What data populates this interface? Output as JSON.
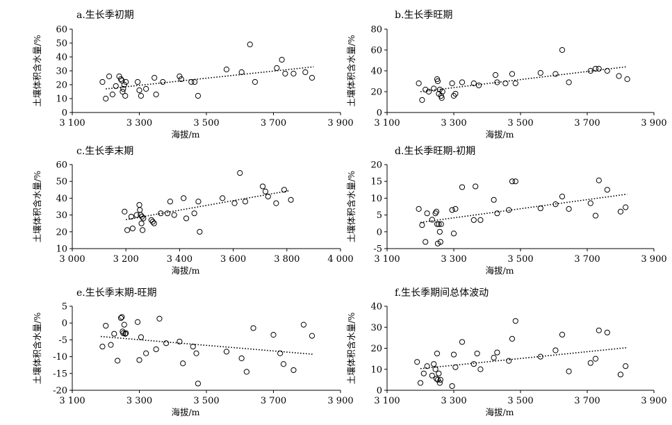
{
  "chart_data": [
    {
      "type": "scatter",
      "title": "a.生长季初期",
      "xlabel": "海拔/m",
      "ylabel": "土壤体积含水量/%",
      "xlim": [
        3100,
        3900
      ],
      "ylim": [
        0,
        60
      ],
      "xticks": [
        3100,
        3300,
        3500,
        3700,
        3900
      ],
      "xtick_labels": [
        "3 100",
        "3 300",
        "3 500",
        "3 700",
        "3 900"
      ],
      "yticks": [
        0,
        10,
        20,
        30,
        40,
        50,
        60
      ],
      "ytick_labels": [
        "0",
        "10",
        "20",
        "30",
        "40",
        "50",
        "60"
      ],
      "trendline": [
        [
          3200,
          17.0
        ],
        [
          3820,
          32.9
        ]
      ],
      "points": [
        [
          3190,
          22
        ],
        [
          3200,
          10
        ],
        [
          3210,
          26
        ],
        [
          3220,
          13
        ],
        [
          3230,
          19
        ],
        [
          3240,
          26
        ],
        [
          3245,
          24
        ],
        [
          3248,
          23
        ],
        [
          3250,
          15
        ],
        [
          3252,
          17
        ],
        [
          3255,
          20
        ],
        [
          3258,
          12
        ],
        [
          3260,
          22
        ],
        [
          3295,
          22
        ],
        [
          3300,
          16
        ],
        [
          3305,
          12
        ],
        [
          3320,
          17
        ],
        [
          3345,
          25
        ],
        [
          3350,
          13
        ],
        [
          3370,
          22
        ],
        [
          3420,
          26
        ],
        [
          3425,
          24
        ],
        [
          3455,
          22
        ],
        [
          3465,
          22
        ],
        [
          3475,
          12
        ],
        [
          3560,
          31
        ],
        [
          3605,
          29
        ],
        [
          3630,
          49
        ],
        [
          3645,
          22
        ],
        [
          3710,
          32
        ],
        [
          3725,
          38
        ],
        [
          3735,
          28
        ],
        [
          3760,
          28
        ],
        [
          3795,
          29
        ],
        [
          3815,
          25
        ]
      ]
    },
    {
      "type": "scatter",
      "title": "b.生长季旺期",
      "xlabel": "海拔/m",
      "ylabel": "土壤体积含水量/%",
      "xlim": [
        3100,
        3900
      ],
      "ylim": [
        0,
        80
      ],
      "xticks": [
        3100,
        3300,
        3500,
        3700,
        3900
      ],
      "xtick_labels": [
        "3 100",
        "3 300",
        "3 500",
        "3 700",
        "3 900"
      ],
      "yticks": [
        0,
        20,
        40,
        60,
        80
      ],
      "ytick_labels": [
        "0",
        "20",
        "40",
        "60",
        "80"
      ],
      "trendline": [
        [
          3200,
          20.0
        ],
        [
          3820,
          44.0
        ]
      ],
      "points": [
        [
          3195,
          28
        ],
        [
          3205,
          12
        ],
        [
          3215,
          22
        ],
        [
          3225,
          20
        ],
        [
          3240,
          23
        ],
        [
          3250,
          32
        ],
        [
          3252,
          30
        ],
        [
          3255,
          18
        ],
        [
          3258,
          22
        ],
        [
          3262,
          16
        ],
        [
          3264,
          14
        ],
        [
          3266,
          20
        ],
        [
          3295,
          28
        ],
        [
          3300,
          16
        ],
        [
          3305,
          18
        ],
        [
          3325,
          29
        ],
        [
          3360,
          28
        ],
        [
          3375,
          26
        ],
        [
          3425,
          36
        ],
        [
          3430,
          29
        ],
        [
          3455,
          28
        ],
        [
          3475,
          37
        ],
        [
          3485,
          28
        ],
        [
          3560,
          38
        ],
        [
          3605,
          37
        ],
        [
          3625,
          60
        ],
        [
          3645,
          29
        ],
        [
          3710,
          40
        ],
        [
          3725,
          42
        ],
        [
          3735,
          42
        ],
        [
          3760,
          40
        ],
        [
          3795,
          35
        ],
        [
          3820,
          32
        ]
      ]
    },
    {
      "type": "scatter",
      "title": "c.生长季末期",
      "xlabel": "海拔/m",
      "ylabel": "土壤体积含水量/%",
      "xlim": [
        3000,
        4000
      ],
      "ylim": [
        10,
        60
      ],
      "xticks": [
        3000,
        3200,
        3400,
        3600,
        3800,
        4000
      ],
      "xtick_labels": [
        "3 000",
        "3 200",
        "3 400",
        "3 600",
        "3 800",
        "4 000"
      ],
      "yticks": [
        10,
        20,
        30,
        40,
        50,
        60
      ],
      "ytick_labels": [
        "10",
        "20",
        "30",
        "40",
        "50",
        "60"
      ],
      "trendline": [
        [
          3200,
          27.2
        ],
        [
          3810,
          44.5
        ]
      ],
      "points": [
        [
          3195,
          32
        ],
        [
          3205,
          21
        ],
        [
          3220,
          29
        ],
        [
          3225,
          22
        ],
        [
          3240,
          30
        ],
        [
          3250,
          36
        ],
        [
          3252,
          33
        ],
        [
          3255,
          30
        ],
        [
          3258,
          25
        ],
        [
          3260,
          29
        ],
        [
          3262,
          21
        ],
        [
          3265,
          28
        ],
        [
          3295,
          27
        ],
        [
          3300,
          26
        ],
        [
          3305,
          25
        ],
        [
          3330,
          31
        ],
        [
          3355,
          31
        ],
        [
          3365,
          38
        ],
        [
          3380,
          30
        ],
        [
          3415,
          40
        ],
        [
          3425,
          28
        ],
        [
          3455,
          31
        ],
        [
          3470,
          38
        ],
        [
          3475,
          20
        ],
        [
          3560,
          40
        ],
        [
          3605,
          37
        ],
        [
          3625,
          55
        ],
        [
          3645,
          38
        ],
        [
          3710,
          47
        ],
        [
          3720,
          44
        ],
        [
          3730,
          41
        ],
        [
          3760,
          37
        ],
        [
          3790,
          45
        ],
        [
          3815,
          39
        ]
      ]
    },
    {
      "type": "scatter",
      "title": "d.生长季旺期-初期",
      "xlabel": "海拔/m",
      "ylabel": "土壤体积含水量/%",
      "xlim": [
        3100,
        3900
      ],
      "ylim": [
        -5,
        20
      ],
      "xticks": [
        3100,
        3300,
        3500,
        3700,
        3900
      ],
      "xtick_labels": [
        "3 100",
        "3 300",
        "3 500",
        "3 700",
        "3 900"
      ],
      "yticks": [
        -5,
        0,
        5,
        10,
        15,
        20
      ],
      "ytick_labels": [
        "-5",
        "0",
        "5",
        "10",
        "15",
        "20"
      ],
      "trendline": [
        [
          3200,
          2.8
        ],
        [
          3820,
          11.2
        ]
      ],
      "points": [
        [
          3195,
          6.8
        ],
        [
          3205,
          2.0
        ],
        [
          3215,
          -3.0
        ],
        [
          3220,
          5.5
        ],
        [
          3235,
          3.6
        ],
        [
          3245,
          5.5
        ],
        [
          3248,
          6.0
        ],
        [
          3250,
          2.3
        ],
        [
          3252,
          -3.5
        ],
        [
          3255,
          2.3
        ],
        [
          3258,
          0.0
        ],
        [
          3260,
          -3.0
        ],
        [
          3262,
          2.3
        ],
        [
          3295,
          6.5
        ],
        [
          3300,
          -0.5
        ],
        [
          3305,
          6.8
        ],
        [
          3325,
          13.3
        ],
        [
          3360,
          3.5
        ],
        [
          3365,
          13.5
        ],
        [
          3380,
          3.5
        ],
        [
          3420,
          9.5
        ],
        [
          3430,
          5.5
        ],
        [
          3465,
          6.5
        ],
        [
          3475,
          15.0
        ],
        [
          3485,
          15.0
        ],
        [
          3560,
          7.0
        ],
        [
          3605,
          8.2
        ],
        [
          3625,
          10.5
        ],
        [
          3645,
          6.8
        ],
        [
          3710,
          8.5
        ],
        [
          3725,
          4.8
        ],
        [
          3735,
          15.3
        ],
        [
          3760,
          12.5
        ],
        [
          3800,
          6.0
        ],
        [
          3815,
          7.3
        ]
      ]
    },
    {
      "type": "scatter",
      "title": "e.生长季末期-旺期",
      "xlabel": "海拔/m",
      "ylabel": "土壤体积含水量/%",
      "xlim": [
        3100,
        3900
      ],
      "ylim": [
        -20,
        5
      ],
      "xticks": [
        3100,
        3300,
        3500,
        3700,
        3900
      ],
      "xtick_labels": [
        "3 100",
        "3 300",
        "3 500",
        "3 700",
        "3 900"
      ],
      "yticks": [
        -20,
        -15,
        -10,
        -5,
        0,
        5
      ],
      "ytick_labels": [
        "-20",
        "-15",
        "-10",
        "-5",
        "0",
        "5"
      ],
      "trendline": [
        [
          3185,
          -4.0
        ],
        [
          3820,
          -9.3
        ]
      ],
      "points": [
        [
          3190,
          -7.0
        ],
        [
          3200,
          -0.8
        ],
        [
          3215,
          -6.5
        ],
        [
          3225,
          -3.2
        ],
        [
          3235,
          -11.2
        ],
        [
          3245,
          1.5
        ],
        [
          3248,
          1.8
        ],
        [
          3250,
          -2.5
        ],
        [
          3252,
          -3.0
        ],
        [
          3255,
          -0.5
        ],
        [
          3258,
          -3.2
        ],
        [
          3260,
          -3.0
        ],
        [
          3295,
          0.3
        ],
        [
          3300,
          -11.0
        ],
        [
          3305,
          -4.2
        ],
        [
          3320,
          -9.0
        ],
        [
          3350,
          -7.8
        ],
        [
          3360,
          1.3
        ],
        [
          3380,
          -6.0
        ],
        [
          3420,
          -5.5
        ],
        [
          3430,
          -12.0
        ],
        [
          3460,
          -7.0
        ],
        [
          3470,
          -9.0
        ],
        [
          3475,
          -18.0
        ],
        [
          3560,
          -8.5
        ],
        [
          3605,
          -10.5
        ],
        [
          3620,
          -14.5
        ],
        [
          3640,
          -1.5
        ],
        [
          3700,
          -3.5
        ],
        [
          3720,
          -9.0
        ],
        [
          3730,
          -12.2
        ],
        [
          3760,
          -14.0
        ],
        [
          3790,
          -0.5
        ],
        [
          3815,
          -3.8
        ]
      ]
    },
    {
      "type": "scatter",
      "title": "f.生长季期间总体波动",
      "xlabel": "海拔/m",
      "ylabel": "土壤体积含水量/%",
      "xlim": [
        3100,
        3900
      ],
      "ylim": [
        0,
        40
      ],
      "xticks": [
        3100,
        3300,
        3500,
        3700,
        3900
      ],
      "xtick_labels": [
        "3 100",
        "3 300",
        "3 500",
        "3 700",
        "3 900"
      ],
      "yticks": [
        0,
        10,
        20,
        30,
        40
      ],
      "ytick_labels": [
        "0",
        "10",
        "20",
        "30",
        "40"
      ],
      "trendline": [
        [
          3200,
          10.3
        ],
        [
          3820,
          20.3
        ]
      ],
      "points": [
        [
          3190,
          13.5
        ],
        [
          3200,
          3.5
        ],
        [
          3210,
          8.0
        ],
        [
          3220,
          11.5
        ],
        [
          3235,
          7.0
        ],
        [
          3240,
          12.5
        ],
        [
          3245,
          10.0
        ],
        [
          3248,
          5.5
        ],
        [
          3250,
          17.5
        ],
        [
          3252,
          5.0
        ],
        [
          3255,
          8.0
        ],
        [
          3258,
          3.5
        ],
        [
          3260,
          5.0
        ],
        [
          3295,
          2.0
        ],
        [
          3300,
          17.0
        ],
        [
          3305,
          11.0
        ],
        [
          3325,
          23.0
        ],
        [
          3360,
          12.5
        ],
        [
          3370,
          17.5
        ],
        [
          3380,
          10.0
        ],
        [
          3420,
          15.5
        ],
        [
          3430,
          18.0
        ],
        [
          3465,
          14.0
        ],
        [
          3475,
          24.5
        ],
        [
          3485,
          33.0
        ],
        [
          3560,
          16.0
        ],
        [
          3605,
          19.0
        ],
        [
          3625,
          26.5
        ],
        [
          3645,
          9.0
        ],
        [
          3710,
          13.0
        ],
        [
          3725,
          15.0
        ],
        [
          3735,
          28.5
        ],
        [
          3760,
          27.5
        ],
        [
          3800,
          7.5
        ],
        [
          3815,
          11.5
        ]
      ]
    }
  ]
}
